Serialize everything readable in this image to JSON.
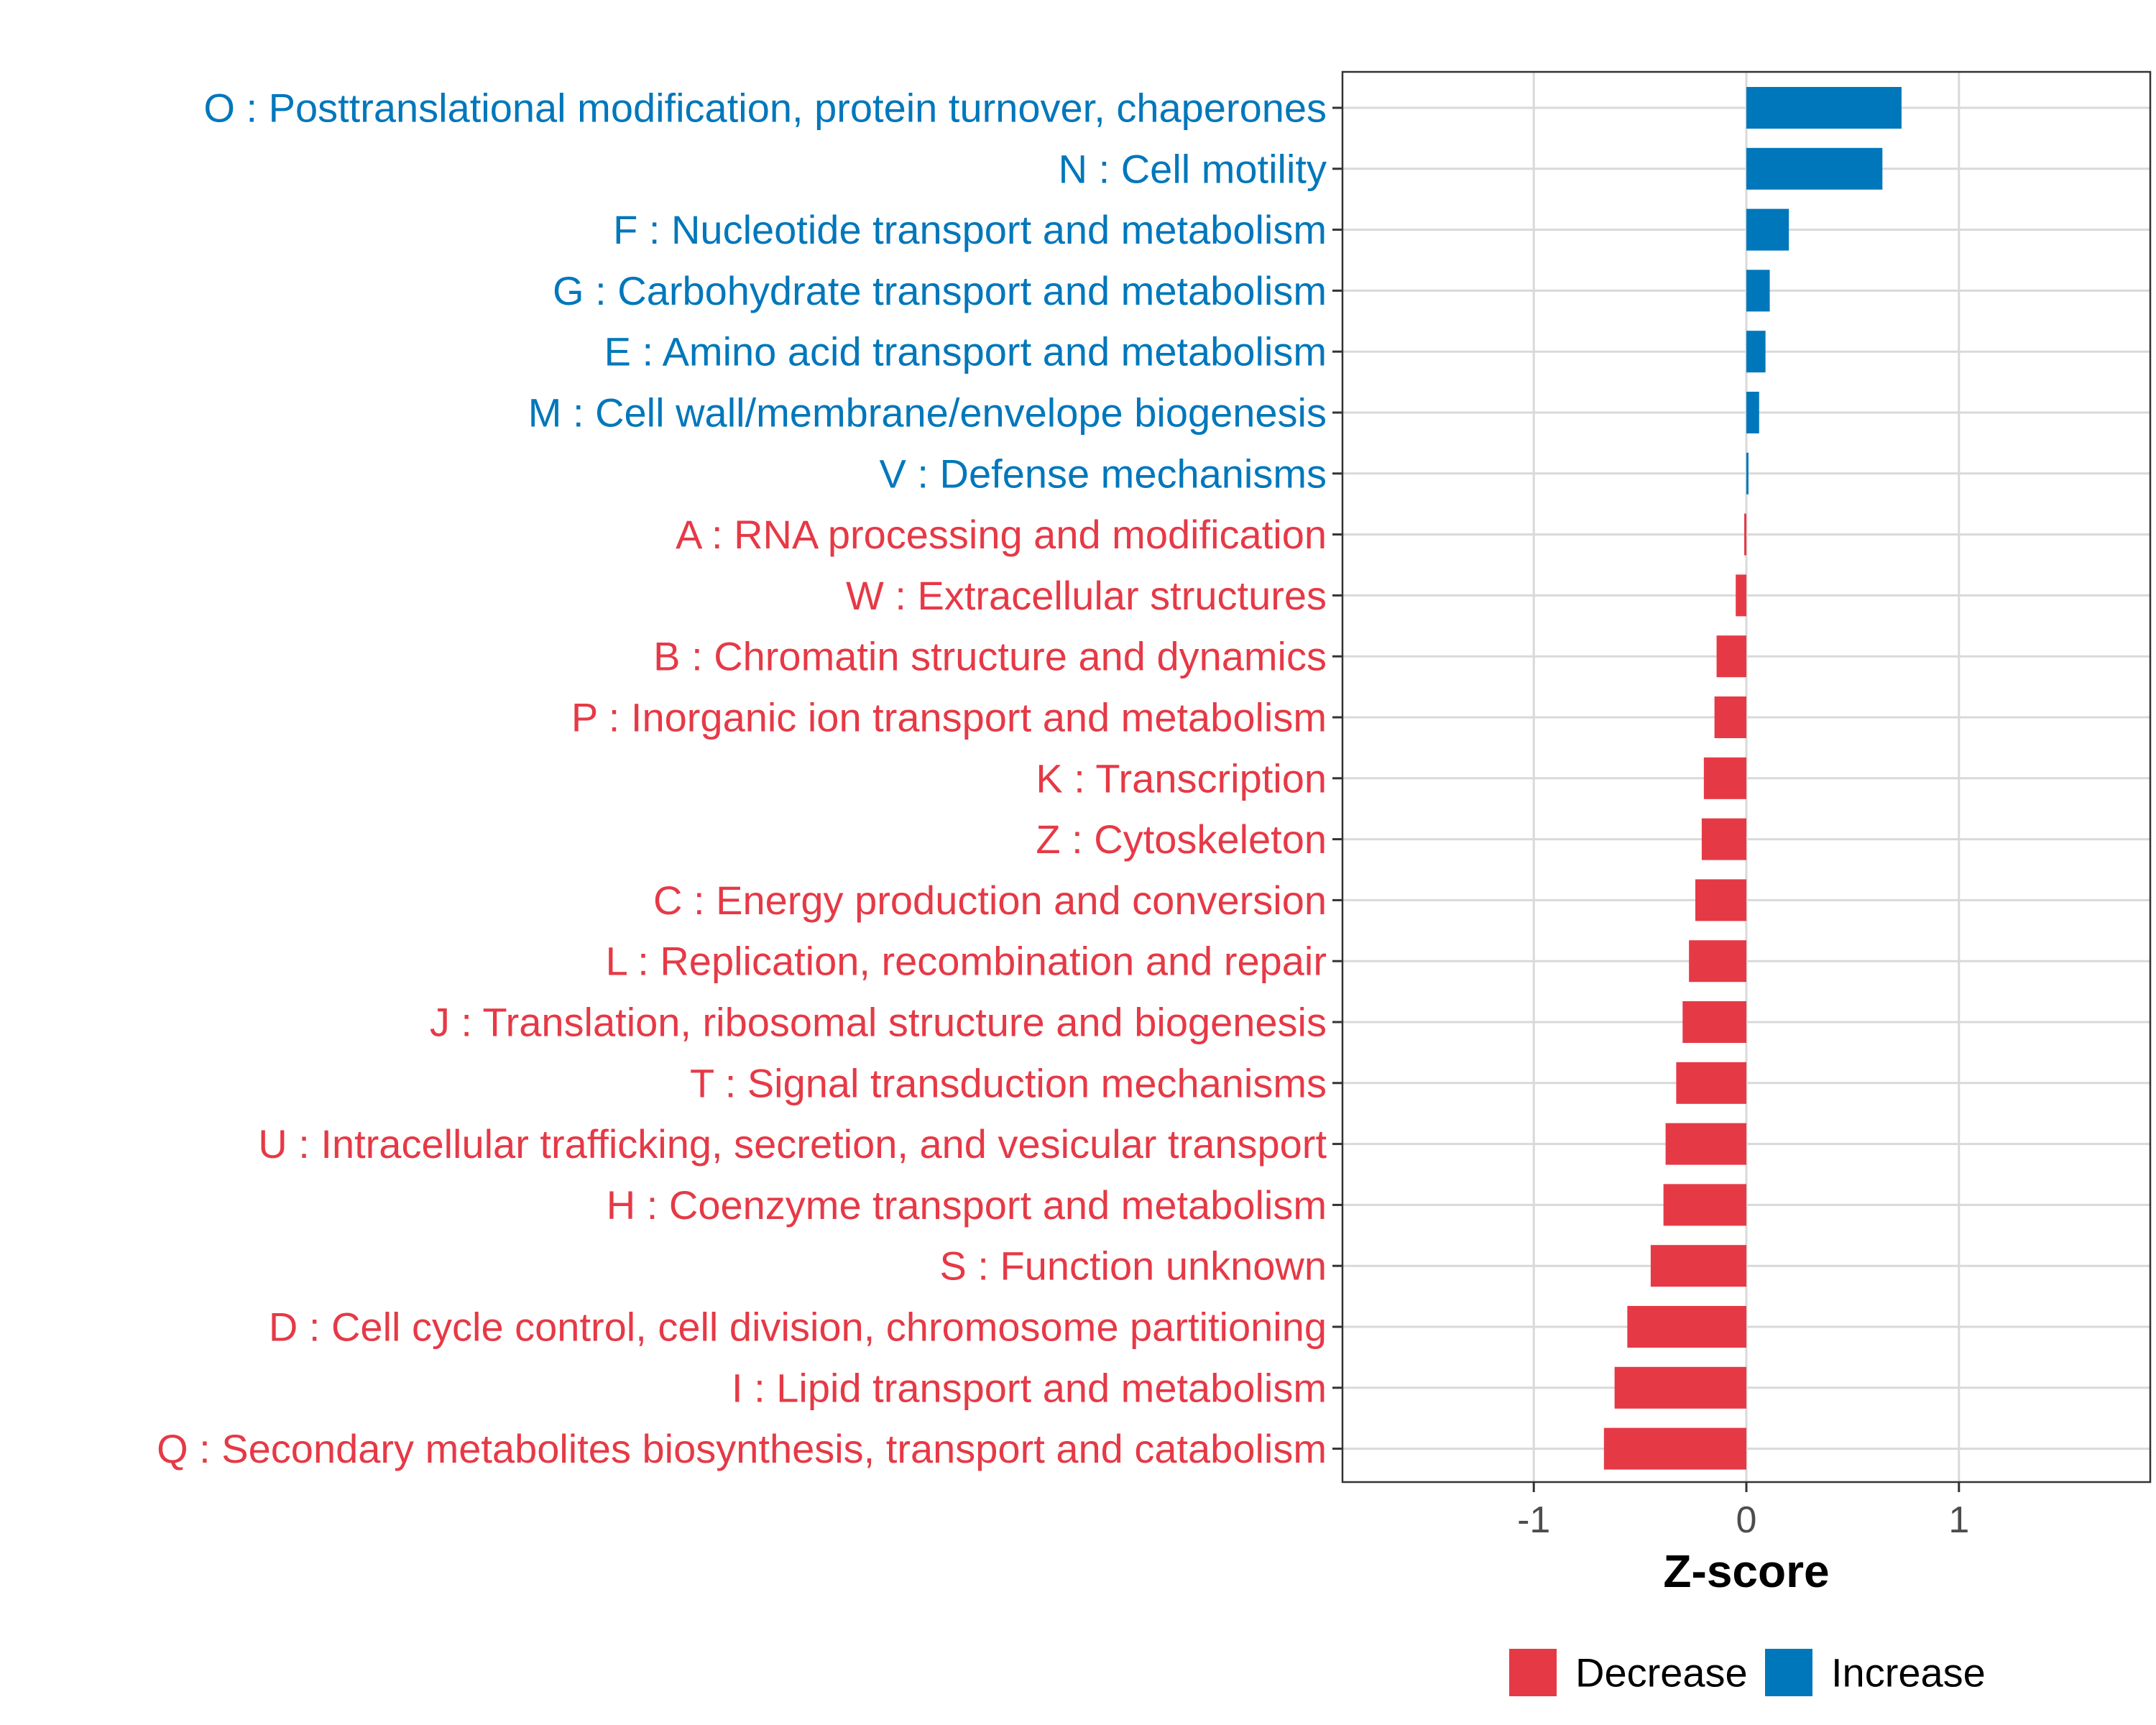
{
  "chart_data": {
    "type": "bar",
    "orientation": "horizontal",
    "title": "",
    "xlabel": "Z-score",
    "ylabel": "",
    "xlim": [
      -1.9,
      1.9
    ],
    "xticks": [
      -1,
      0,
      1
    ],
    "xtick_labels": [
      "-1",
      "0",
      "1"
    ],
    "grid": true,
    "legend_position": "bottom",
    "colors": {
      "Decrease": "#e63946",
      "Increase": "#0077bb"
    },
    "categories": [
      "O : Posttranslational modification, protein turnover, chaperones",
      "N : Cell motility",
      "F : Nucleotide transport and metabolism",
      "G : Carbohydrate transport and metabolism",
      "E : Amino acid transport and metabolism",
      "M : Cell wall/membrane/envelope biogenesis",
      "V : Defense mechanisms",
      "A : RNA processing and modification",
      "W : Extracellular structures",
      "B : Chromatin structure and dynamics",
      "P : Inorganic ion transport and metabolism",
      "K : Transcription",
      "Z : Cytoskeleton",
      "C : Energy production and conversion",
      "L : Replication, recombination and repair",
      "J : Translation, ribosomal structure and biogenesis",
      "T : Signal transduction mechanisms",
      "U : Intracellular trafficking, secretion, and vesicular transport",
      "H : Coenzyme transport and metabolism",
      "S : Function unknown",
      "D : Cell cycle control, cell division, chromosome partitioning",
      "I : Lipid transport and metabolism",
      "Q : Secondary metabolites biosynthesis, transport and catabolism"
    ],
    "values": [
      0.73,
      0.64,
      0.2,
      0.11,
      0.09,
      0.06,
      0.01,
      -0.01,
      -0.05,
      -0.14,
      -0.15,
      -0.2,
      -0.21,
      -0.24,
      -0.27,
      -0.3,
      -0.33,
      -0.38,
      -0.39,
      -0.45,
      -0.56,
      -0.62,
      -0.67
    ],
    "direction": [
      "Increase",
      "Increase",
      "Increase",
      "Increase",
      "Increase",
      "Increase",
      "Increase",
      "Decrease",
      "Decrease",
      "Decrease",
      "Decrease",
      "Decrease",
      "Decrease",
      "Decrease",
      "Decrease",
      "Decrease",
      "Decrease",
      "Decrease",
      "Decrease",
      "Decrease",
      "Decrease",
      "Decrease",
      "Decrease"
    ],
    "legend": [
      "Decrease",
      "Increase"
    ]
  }
}
